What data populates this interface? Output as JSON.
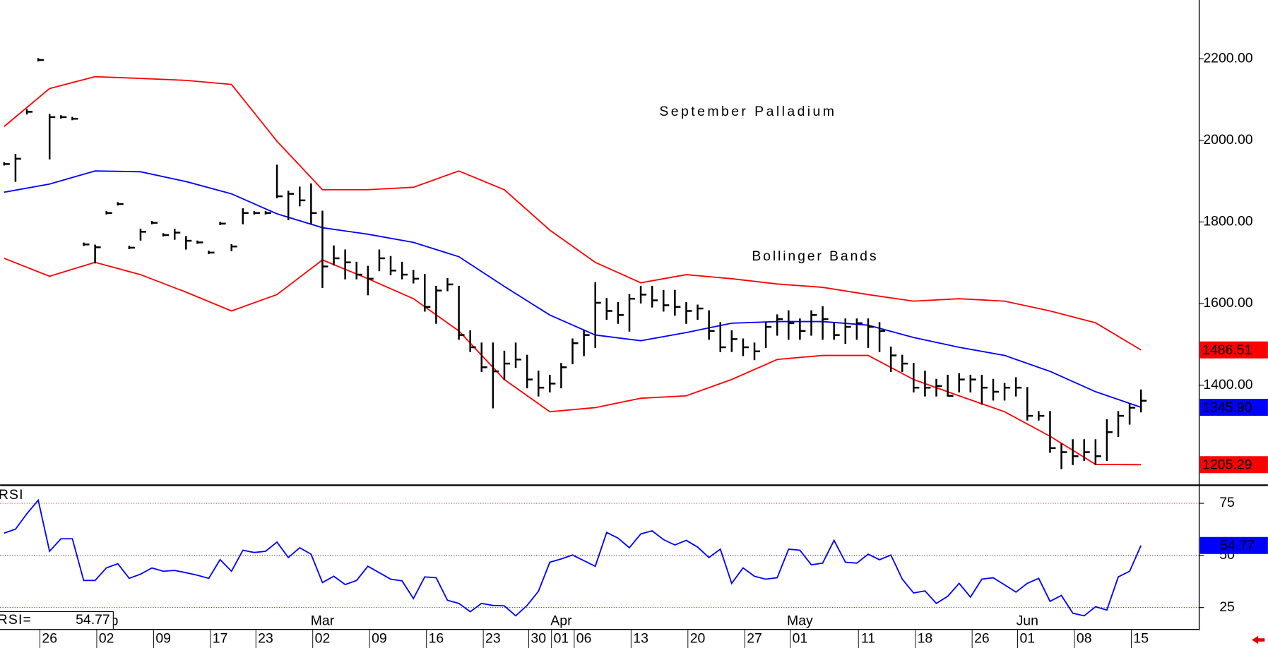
{
  "chart_data": [
    {
      "type": "ohlc",
      "title": "September Palladium",
      "annotation": "Bollinger Bands",
      "annotation_color": "#ff0000",
      "bar_color": "#000000",
      "x": [
        0,
        1,
        2,
        3,
        4,
        5,
        6,
        7,
        8,
        9,
        10,
        11,
        12,
        13,
        14,
        15,
        16,
        17,
        18,
        19,
        20,
        21,
        22,
        23,
        24,
        25,
        26,
        27,
        28,
        29,
        30,
        31,
        32,
        33,
        34,
        35,
        36,
        37,
        38,
        39,
        40,
        41,
        42,
        43,
        44,
        45,
        46,
        47,
        48,
        49,
        50,
        51,
        52,
        53,
        54,
        55,
        56,
        57,
        58,
        59,
        60,
        61,
        62,
        63,
        64,
        65,
        66,
        67,
        68,
        69,
        70,
        71,
        72,
        73,
        74,
        75,
        76,
        77,
        78,
        79,
        80,
        81,
        82,
        83,
        84,
        85,
        86,
        87,
        88,
        89,
        90,
        91,
        92,
        93,
        94,
        95,
        96,
        97,
        98,
        99,
        100
      ],
      "high": [
        1945,
        1965,
        2075,
        2200,
        2063,
        2060,
        2056,
        1748,
        1743,
        1825,
        1847,
        1740,
        1782,
        1801,
        1771,
        1782,
        1764,
        1753,
        1728,
        1799,
        1744,
        1832,
        1825,
        1825,
        1939,
        1875,
        1885,
        1893,
        1826,
        1741,
        1731,
        1701,
        1691,
        1731,
        1715,
        1701,
        1681,
        1671,
        1642,
        1661,
        1642,
        1533,
        1503,
        1503,
        1483,
        1503,
        1473,
        1434,
        1424,
        1453,
        1513,
        1533,
        1651,
        1612,
        1602,
        1622,
        1642,
        1642,
        1632,
        1632,
        1602,
        1596,
        1582,
        1553,
        1533,
        1513,
        1503,
        1553,
        1572,
        1582,
        1562,
        1582,
        1592,
        1553,
        1562,
        1562,
        1562,
        1553,
        1493,
        1473,
        1453,
        1434,
        1414,
        1424,
        1428,
        1424,
        1424,
        1414,
        1404,
        1418,
        1394,
        1335,
        1335,
        1256,
        1266,
        1266,
        1266,
        1315,
        1335,
        1354,
        1388
      ],
      "low": [
        1940,
        1900,
        2065,
        2195,
        1955,
        2055,
        2051,
        1743,
        1700,
        1820,
        1842,
        1735,
        1756,
        1796,
        1766,
        1758,
        1734,
        1748,
        1723,
        1794,
        1730,
        1796,
        1820,
        1820,
        1860,
        1806,
        1840,
        1796,
        1640,
        1695,
        1661,
        1661,
        1622,
        1681,
        1671,
        1661,
        1651,
        1582,
        1552,
        1632,
        1513,
        1483,
        1434,
        1345,
        1414,
        1444,
        1394,
        1374,
        1384,
        1394,
        1453,
        1473,
        1493,
        1562,
        1552,
        1533,
        1602,
        1592,
        1582,
        1572,
        1552,
        1562,
        1513,
        1483,
        1483,
        1473,
        1463,
        1493,
        1523,
        1513,
        1513,
        1523,
        1513,
        1513,
        1503,
        1513,
        1493,
        1483,
        1434,
        1434,
        1384,
        1374,
        1374,
        1374,
        1384,
        1384,
        1354,
        1364,
        1364,
        1374,
        1315,
        1315,
        1236,
        1196,
        1206,
        1216,
        1206,
        1216,
        1275,
        1305,
        1335
      ],
      "close": [
        1942,
        1955,
        2070,
        2197,
        2057,
        2057,
        2053,
        1745,
        1738,
        1822,
        1844,
        1737,
        1776,
        1798,
        1768,
        1774,
        1754,
        1750,
        1725,
        1796,
        1740,
        1822,
        1822,
        1822,
        1863,
        1869,
        1853,
        1822,
        1691,
        1711,
        1701,
        1671,
        1661,
        1711,
        1681,
        1671,
        1661,
        1592,
        1632,
        1647,
        1523,
        1493,
        1444,
        1434,
        1453,
        1463,
        1414,
        1394,
        1404,
        1444,
        1503,
        1523,
        1602,
        1582,
        1572,
        1612,
        1622,
        1608,
        1596,
        1592,
        1582,
        1588,
        1533,
        1493,
        1513,
        1493,
        1483,
        1543,
        1562,
        1552,
        1533,
        1572,
        1562,
        1523,
        1543,
        1552,
        1543,
        1533,
        1473,
        1453,
        1394,
        1394,
        1398,
        1374,
        1414,
        1414,
        1394,
        1384,
        1394,
        1394,
        1325,
        1325,
        1246,
        1236,
        1226,
        1236,
        1226,
        1285,
        1325,
        1345,
        1362
      ],
      "bands": [
        {
          "color": "#ff0000",
          "x": [
            0,
            4,
            8,
            12,
            16,
            20,
            24,
            28,
            32,
            36,
            40,
            44,
            48,
            52,
            56,
            60,
            64,
            68,
            72,
            76,
            80,
            84,
            88,
            92,
            96,
            100
          ],
          "values": [
            2034,
            2127,
            2156,
            2152,
            2147,
            2137,
            1998,
            1879,
            1879,
            1885,
            1925,
            1879,
            1780,
            1701,
            1651,
            1671,
            1661,
            1648,
            1640,
            1622,
            1606,
            1612,
            1606,
            1582,
            1553,
            1486.51
          ],
          "value_labels": [
            null,
            null,
            null,
            null,
            null,
            null,
            null,
            null,
            null,
            null,
            null,
            null,
            null,
            null,
            null,
            null,
            null,
            null,
            null,
            null,
            null,
            null,
            null,
            null,
            null,
            "1486.51"
          ]
        },
        {
          "color": "#0000ff",
          "x": [
            0,
            4,
            8,
            12,
            16,
            20,
            24,
            28,
            32,
            36,
            40,
            44,
            48,
            52,
            56,
            60,
            64,
            68,
            72,
            76,
            80,
            84,
            88,
            92,
            96,
            100
          ],
          "values": [
            1873,
            1893,
            1925,
            1923,
            1899,
            1869,
            1820,
            1786,
            1770,
            1750,
            1715,
            1642,
            1572,
            1523,
            1509,
            1529,
            1552,
            1556,
            1556,
            1547,
            1517,
            1493,
            1473,
            1434,
            1384,
            1345.9
          ],
          "value_labels": [
            null,
            null,
            null,
            null,
            null,
            null,
            null,
            null,
            null,
            null,
            null,
            null,
            null,
            null,
            null,
            null,
            null,
            null,
            null,
            null,
            null,
            null,
            null,
            null,
            null,
            "1345.90"
          ]
        },
        {
          "color": "#ff0000",
          "x": [
            0,
            4,
            8,
            12,
            16,
            20,
            24,
            28,
            32,
            36,
            40,
            44,
            48,
            52,
            56,
            60,
            64,
            68,
            72,
            76,
            80,
            84,
            88,
            92,
            96,
            100
          ],
          "values": [
            1711,
            1667,
            1701,
            1671,
            1628,
            1582,
            1622,
            1707,
            1661,
            1612,
            1533,
            1414,
            1335,
            1345,
            1368,
            1374,
            1414,
            1463,
            1473,
            1473,
            1414,
            1374,
            1335,
            1275,
            1206,
            1205.29
          ],
          "value_labels": [
            null,
            null,
            null,
            null,
            null,
            null,
            null,
            null,
            null,
            null,
            null,
            null,
            null,
            null,
            null,
            null,
            null,
            null,
            null,
            null,
            null,
            null,
            null,
            null,
            null,
            "1205.29"
          ]
        }
      ],
      "xlim": [
        -0.356,
        105.12
      ],
      "ylim": [
        1156,
        2344
      ],
      "yticks": [
        {
          "value": 1400,
          "label": "1400.00"
        },
        {
          "value": 1600,
          "label": "1600.00"
        },
        {
          "value": 1800,
          "label": "1800.00"
        },
        {
          "value": 2000,
          "label": "2000.00"
        },
        {
          "value": 2200,
          "label": "2200.00"
        }
      ]
    },
    {
      "type": "line",
      "x": [
        0,
        1,
        2,
        3,
        4,
        5,
        6,
        7,
        8,
        9,
        10,
        11,
        12,
        13,
        14,
        15,
        16,
        17,
        18,
        19,
        20,
        21,
        22,
        23,
        24,
        25,
        26,
        27,
        28,
        29,
        30,
        31,
        32,
        33,
        34,
        35,
        36,
        37,
        38,
        39,
        40,
        41,
        42,
        43,
        44,
        45,
        46,
        47,
        48,
        49,
        50,
        51,
        52,
        53,
        54,
        55,
        56,
        57,
        58,
        59,
        60,
        61,
        62,
        63,
        64,
        65,
        66,
        67,
        68,
        69,
        70,
        71,
        72,
        73,
        74,
        75,
        76,
        77,
        78,
        79,
        80,
        81,
        82,
        83,
        84,
        85,
        86,
        87,
        88,
        89,
        90,
        91,
        92,
        93,
        94,
        95,
        96,
        97,
        98,
        99,
        100
      ],
      "series": [
        {
          "name": "RSI",
          "color": "#0000ff",
          "values": [
            60.7,
            62.6,
            70,
            76.5,
            52,
            58,
            58,
            38,
            38,
            44,
            46,
            39,
            41,
            44,
            42.4,
            42.8,
            41.7,
            40.5,
            39,
            48,
            42.4,
            52.5,
            51.4,
            52,
            56.4,
            49,
            53.7,
            50.6,
            37,
            40,
            36,
            38,
            44.8,
            41.7,
            38.6,
            37.8,
            29.3,
            39.7,
            39.3,
            28.5,
            27,
            23,
            27,
            26,
            25.8,
            21,
            26,
            32.8,
            46.7,
            48.3,
            50.2,
            47.5,
            44.8,
            61,
            58.3,
            53.7,
            60.3,
            61.8,
            57.6,
            55,
            57.2,
            54,
            49,
            53,
            36.6,
            44,
            40,
            38.6,
            39.3,
            53,
            52.5,
            45.5,
            46.3,
            57.2,
            46.7,
            46.3,
            50.6,
            47.9,
            50.2,
            38.6,
            32,
            33,
            27,
            30.4,
            36.6,
            30,
            38.6,
            39.3,
            35.9,
            32.4,
            36.6,
            39,
            28,
            30.8,
            22.3,
            21,
            25.4,
            23.8,
            39.7,
            42.4,
            54.77
          ]
        }
      ],
      "readout_label": "RSI=",
      "reference_lines": [
        {
          "value": 75,
          "color": "#ff0000"
        },
        {
          "value": 50,
          "color": "#000000"
        },
        {
          "value": 25,
          "color": "#0000ff"
        }
      ],
      "xlim": [
        -0.356,
        105.12
      ],
      "xticks": [
        {
          "value": 4,
          "label": "26"
        },
        {
          "value": 9,
          "label": "02"
        },
        {
          "value": 14,
          "label": "09"
        },
        {
          "value": 19,
          "label": "17"
        },
        {
          "value": 23,
          "label": "23"
        },
        {
          "value": 28,
          "label": "02"
        },
        {
          "value": 33,
          "label": "09"
        },
        {
          "value": 38,
          "label": "16"
        },
        {
          "value": 43,
          "label": "23"
        },
        {
          "value": 47,
          "label": "30"
        },
        {
          "value": 49,
          "label": "01"
        },
        {
          "value": 51,
          "label": "06"
        },
        {
          "value": 56,
          "label": "13"
        },
        {
          "value": 61,
          "label": "20"
        },
        {
          "value": 66,
          "label": "27"
        },
        {
          "value": 70,
          "label": "01"
        },
        {
          "value": 76,
          "label": "11"
        },
        {
          "value": 81,
          "label": "18"
        },
        {
          "value": 86,
          "label": "26"
        },
        {
          "value": 90,
          "label": "01"
        },
        {
          "value": 95,
          "label": "08"
        },
        {
          "value": 100,
          "label": "15"
        }
      ],
      "month_labels": [
        {
          "value": 9,
          "label": "Feb"
        },
        {
          "value": 28,
          "label": "Mar"
        },
        {
          "value": 49,
          "label": "Apr"
        },
        {
          "value": 70,
          "label": "May"
        },
        {
          "value": 90,
          "label": "Jun"
        }
      ],
      "ylim": [
        14.5,
        83.5
      ],
      "yticks": [
        25,
        50,
        75
      ]
    }
  ]
}
